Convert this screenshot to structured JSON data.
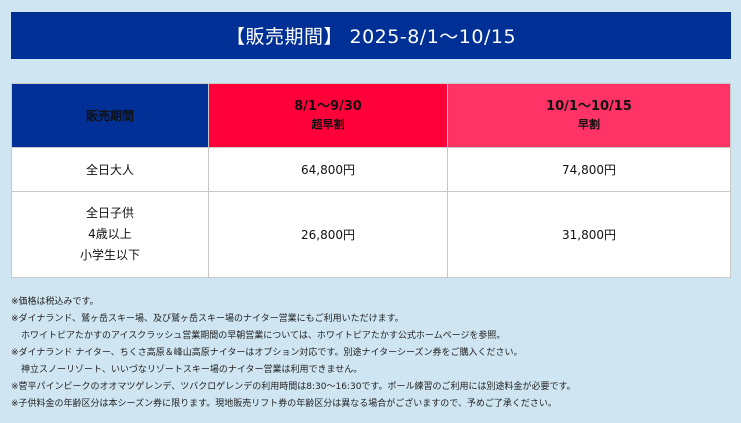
{
  "header": {
    "title": "【販売期間】 2025-8/1〜10/15"
  },
  "table": {
    "label_header": "販売期間",
    "columns": [
      {
        "period": "8/1〜9/30",
        "plan": "超早割"
      },
      {
        "period": "10/1〜10/15",
        "plan": "早割"
      }
    ],
    "rows": {
      "adult": {
        "label": "全日大人",
        "prices": [
          "64,800円",
          "74,800円"
        ]
      },
      "child": {
        "label_lines": [
          "全日子供",
          "4歳以上",
          "小学生以下"
        ],
        "prices": [
          "26,800円",
          "31,800円"
        ]
      }
    }
  },
  "notes": [
    "※価格は税込みです。",
    "※ダイナランド、鷲ヶ岳スキー場、及び鷲ヶ岳スキー場のナイター営業にもご利用いただけます。",
    "ホワイトピアたかすのアイスクラッシュ営業期間の早朝営業については、ホワイトピアたかす公式ホームページを参照。",
    "※ダイナランド ナイター、ちくさ高原＆峰山高原ナイターはオプション対応です。別途ナイターシーズン券をご購入ください。",
    "神立スノーリゾート、いいづなリゾートスキー場のナイター営業は利用できません。",
    "※菅平パインビークのオオマツゲレンデ、ツバクロゲレンデの利用時間は8:30〜16:30です。ポール練習のご利用には別途料金が必要です。",
    "※子供料金の年齢区分は本シーズン券に限ります。現地販売リフト券の年齢区分は異なる場合がございますので、予めご了承ください。"
  ],
  "colors": {
    "header_blue": "#003096",
    "super_early_red": "#ff003a",
    "early_pink": "#ff3366",
    "background": "#cfe6f2"
  }
}
